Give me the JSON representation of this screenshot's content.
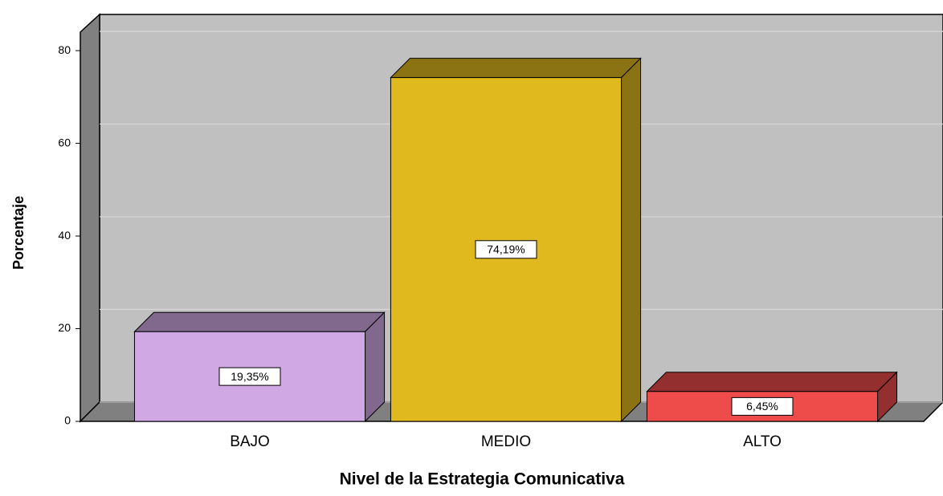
{
  "chart_data": {
    "type": "bar",
    "x_label": "Nivel de la Estrategia Comunicativa",
    "y_label": "Porcentaje",
    "categories": [
      "BAJO",
      "MEDIO",
      "ALTO"
    ],
    "values": [
      19.35,
      74.19,
      6.45
    ],
    "value_labels": [
      "19,35%",
      "74,19%",
      "6,45%"
    ],
    "colors": [
      "#d0a8e4",
      "#e0b91e",
      "#ee4b4b"
    ],
    "ylim": [
      0,
      84
    ],
    "yticks": [
      0,
      20,
      40,
      60,
      80
    ],
    "grid": true
  }
}
